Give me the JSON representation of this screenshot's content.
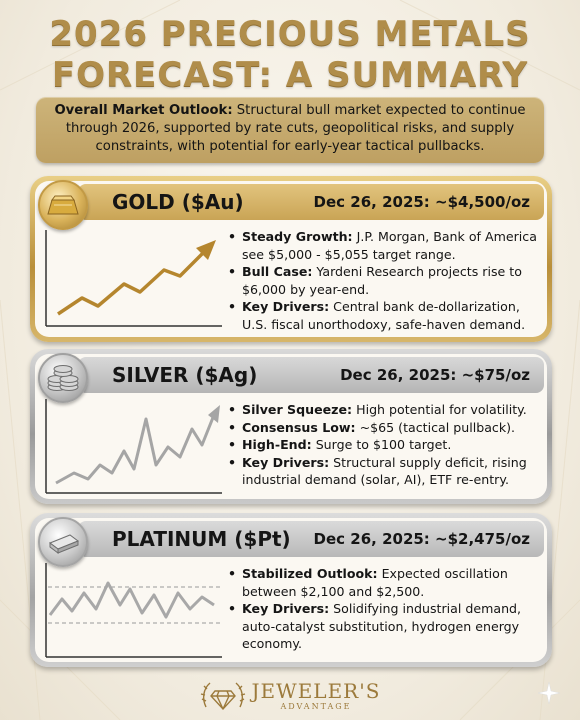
{
  "title_line1": "2026 PRECIOUS METALS",
  "title_line2": "FORECAST: A SUMMARY",
  "outlook": {
    "label": "Overall Market Outlook:",
    "text": " Structural bull market expected to continue through 2026, supported by rate cuts, geopolitical risks, and supply constraints, with potential for early-year tactical pullbacks."
  },
  "cards": [
    {
      "name": "GOLD ($Au)",
      "price": "Dec 26, 2025: ~$4,500/oz",
      "icon": "gold-bar-icon",
      "accent": "#b58a34",
      "bullets": [
        {
          "label": "Steady Growth:",
          "text": " J.P. Morgan, Bank of America see $5,000 - $5,055 target range."
        },
        {
          "label": "Bull Case:",
          "text": " Yardeni Research projects rise to $6,000 by year-end."
        },
        {
          "label": "Key Drivers:",
          "text": " Central bank de-dollarization, U.S. fiscal unorthodoxy, safe-haven demand."
        }
      ]
    },
    {
      "name": "SILVER ($Ag)",
      "price": "Dec 26, 2025: ~$75/oz",
      "icon": "coin-stack-icon",
      "accent": "#9e9e9e",
      "bullets": [
        {
          "label": "Silver Squeeze:",
          "text": " High potential for volatility."
        },
        {
          "label": "Consensus Low:",
          "text": " ~$65 (tactical pullback)."
        },
        {
          "label": "High-End:",
          "text": " Surge to $100 target."
        },
        {
          "label": "Key Drivers:",
          "text": " Structural supply deficit, rising industrial demand (solar, AI), ETF re-entry."
        }
      ]
    },
    {
      "name": "PLATINUM ($Pt)",
      "price": "Dec 26, 2025: ~$2,475/oz",
      "icon": "platinum-bar-icon",
      "accent": "#a8a8a8",
      "bullets": [
        {
          "label": "Stabilized Outlook:",
          "text": " Expected oscillation between $2,100 and $2,500."
        },
        {
          "label": "Key Drivers:",
          "text": " Solidifying industrial demand, auto-catalyst substitution, hydrogen energy economy."
        }
      ]
    }
  ],
  "logo": {
    "main": "JEWELER'S",
    "sub": "ADVANTAGE",
    "color": "#9c7a3b"
  },
  "colors": {
    "title": "#b08d4a",
    "outlook_bg": "#c6aa6c"
  }
}
